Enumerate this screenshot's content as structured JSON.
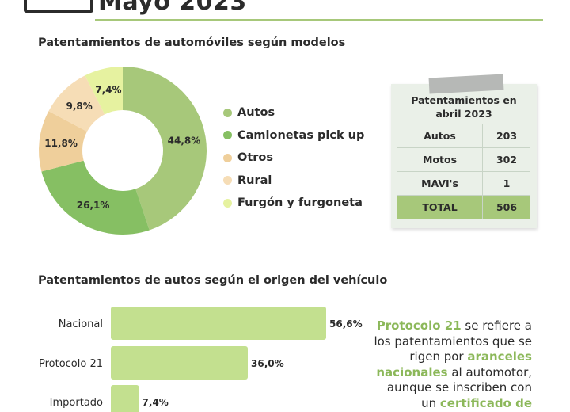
{
  "page_title": "Mayo 2023",
  "donut_section_title": "Patentamientos de automóviles según modelos",
  "bar_section_title": "Patentamientos de autos según el origen del vehículo",
  "colors": {
    "accent": "#a7c87a",
    "autos": "#a7c87a",
    "camionetas": "#86bf63",
    "otros": "#efcf9b",
    "rural": "#f6ddb6",
    "furgon": "#e6f2a0",
    "bar": "#c3e08f"
  },
  "chart_data": [
    {
      "type": "pie",
      "title": "Patentamientos de automóviles según modelos",
      "categories": [
        "Autos",
        "Camionetas pick up",
        "Otros",
        "Rural",
        "Furgón y furgoneta"
      ],
      "values": [
        44.8,
        26.1,
        11.8,
        9.8,
        7.4
      ],
      "labels": [
        "44,8%",
        "26,1%",
        "11,8%",
        "9,8%",
        "7,4%"
      ],
      "legend": "right"
    },
    {
      "type": "bar",
      "orientation": "horizontal",
      "title": "Patentamientos de autos según el origen del vehículo",
      "categories": [
        "Nacional",
        "Protocolo 21",
        "Importado"
      ],
      "values": [
        56.6,
        36.0,
        7.4
      ],
      "labels": [
        "56,6%",
        "36,0%",
        "7,4%"
      ],
      "grid": false
    }
  ],
  "table": {
    "header_line1": "Patentamientos en",
    "header_line2": "abril 2023",
    "rows": [
      {
        "label": "Autos",
        "value": "203"
      },
      {
        "label": "Motos",
        "value": "302"
      },
      {
        "label": "MAVI's",
        "value": "1"
      }
    ],
    "total_label": "TOTAL",
    "total_value": "506"
  },
  "note": {
    "hl1": "Protocolo 21",
    "t1": " se refiere a los patentamientos que se rigen por ",
    "hl2": "aranceles nacionales",
    "t2": " al automotor, aunque se inscriben con un ",
    "hl3": "certificado de"
  }
}
